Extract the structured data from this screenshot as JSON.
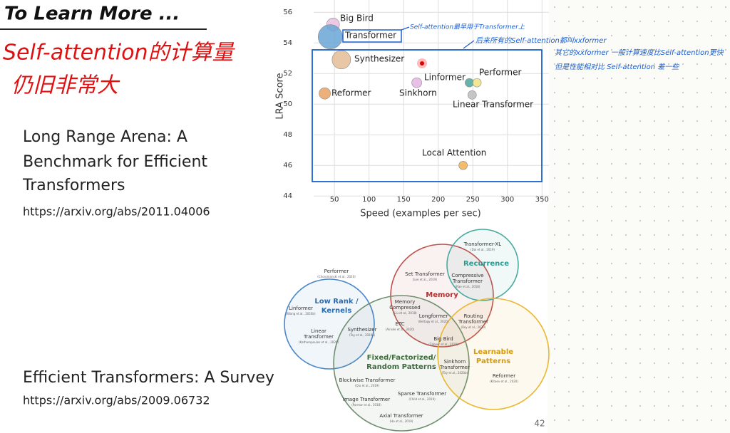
{
  "slide": {
    "title": "To Learn More ...",
    "paper1": {
      "title_lines": [
        "Long Range Arena: A",
        "Benchmark for Efficient",
        "Transformers"
      ],
      "url": "https://arxiv.org/abs/2011.04006"
    },
    "paper2": {
      "title_lines": [
        "Efficient Transformers: A Survey"
      ],
      "url": "https://arxiv.org/abs/2009.06732"
    },
    "page_number": "42"
  },
  "annotations": {
    "red": [
      "Self-attention的计算量",
      "仍旧非常大"
    ],
    "blue": [
      "Self-attention最早用于Transformer上",
      "后来所有的Self-attention都叫xxformer",
      "其它的xxformer 一般计算速度比Self-attention更快",
      "但是性能相对比 Self-attention 差一些"
    ]
  },
  "chart_data": {
    "type": "scatter",
    "xlabel": "Speed (examples per sec)",
    "ylabel": "LRA Score",
    "labels": [
      "Big Bird",
      "Transformer",
      "Synthesizer",
      "Reformer",
      "Sinkhorn",
      "Linformer",
      "Performer",
      "Linear Transformer",
      "Local Attention"
    ],
    "x": [
      48,
      44,
      60,
      36,
      169,
      245,
      256,
      249,
      236
    ],
    "values": [
      55.2,
      54.4,
      52.9,
      50.7,
      51.4,
      51.4,
      51.4,
      50.6,
      46.0
    ],
    "sizes": [
      9,
      17,
      13,
      8,
      7,
      6,
      6,
      6,
      6
    ],
    "colors": [
      "#e9bfe0",
      "#6aa6d6",
      "#e3bd96",
      "#e9a263",
      "#e3b4e3",
      "#4aa79e",
      "#f1e285",
      "#bcbcbc",
      "#f0b256"
    ],
    "xlim": [
      20,
      360
    ],
    "ylim": [
      43.5,
      56.8
    ],
    "xticks": [
      50,
      100,
      150,
      200,
      250,
      300,
      350
    ],
    "yticks": [
      44,
      46,
      48,
      50,
      52,
      54,
      56
    ],
    "grid": true
  },
  "diagram": {
    "circles": [
      {
        "title_lines": [
          "Low Rank /",
          "Kernels"
        ],
        "color": "#4a86c8"
      },
      {
        "title_lines": [
          "Memory"
        ],
        "color": "#c0504d"
      },
      {
        "title_lines": [
          "Recurrence"
        ],
        "color": "#4aaba0"
      },
      {
        "title_lines": [
          "Fixed/Factorized/",
          "Random Patterns"
        ],
        "color": "#6f8f6f"
      },
      {
        "title_lines": [
          "Learnable",
          "Patterns"
        ],
        "color": "#e8b830"
      }
    ],
    "items": [
      {
        "lines": [
          "Performer"
        ],
        "cite": "(Choromanski et al., 2020)"
      },
      {
        "lines": [
          "Linformer"
        ],
        "cite": "(Wang et al., 2020b)"
      },
      {
        "lines": [
          "Linear",
          "Transformer"
        ],
        "cite": "(Katharopoulos et al., 2020)"
      },
      {
        "lines": [
          "Synthesizer"
        ],
        "cite": "(Tay et al., 2020a)"
      },
      {
        "lines": [
          "Set Transformer"
        ],
        "cite": "(Lee et al., 2019)"
      },
      {
        "lines": [
          "Memory",
          "Compressed"
        ],
        "cite": "(Liu et al., 2018)"
      },
      {
        "lines": [
          "ETC"
        ],
        "cite": "(Ainslie et al., 2020)"
      },
      {
        "lines": [
          "Longformer"
        ],
        "cite": "(Beltagy et al., 2020)"
      },
      {
        "lines": [
          "Big Bird"
        ],
        "cite": "(Zaheer et al., 2020)"
      },
      {
        "lines": [
          "Transformer-XL"
        ],
        "cite": "(Dai et al., 2019)"
      },
      {
        "lines": [
          "Compressive",
          "Transformer"
        ],
        "cite": "(Rae et al., 2018)"
      },
      {
        "lines": [
          "Routing",
          "Transformer"
        ],
        "cite": "(Roy et al., 2020)"
      },
      {
        "lines": [
          "Sinkhorn",
          "Transformer"
        ],
        "cite": "(Tay et al., 2020b)"
      },
      {
        "lines": [
          "Reformer"
        ],
        "cite": "(Kitaev et al., 2020)"
      },
      {
        "lines": [
          "Blockwise Transformer"
        ],
        "cite": "(Qiu et al., 2019)"
      },
      {
        "lines": [
          "Sparse Transformer"
        ],
        "cite": "(Child et al., 2019)"
      },
      {
        "lines": [
          "Image Transformer"
        ],
        "cite": "(Parmar et al., 2018)"
      },
      {
        "lines": [
          "Axial Transformer"
        ],
        "cite": "(Ho et al., 2019)"
      }
    ]
  }
}
